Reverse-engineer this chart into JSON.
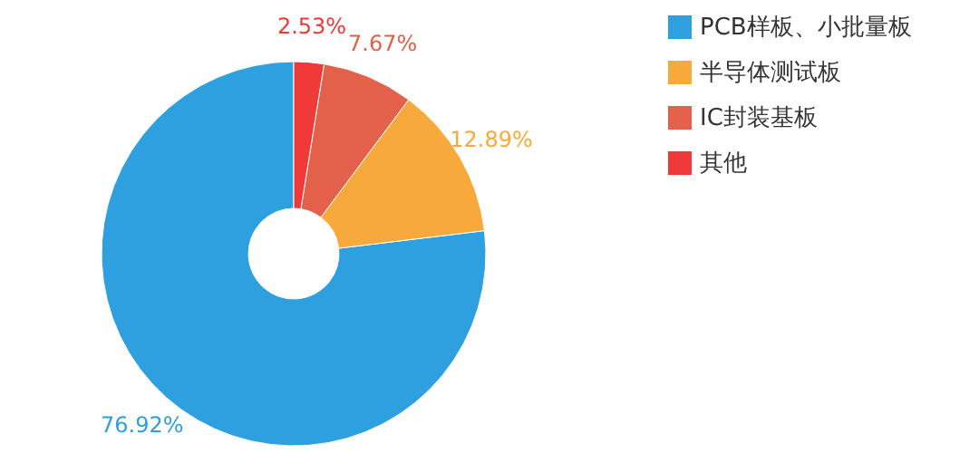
{
  "chart_data": {
    "type": "donut",
    "categories": [
      "PCB样板、小批量板",
      "半导体测试板",
      "IC封装基板",
      "其他"
    ],
    "values": [
      76.92,
      12.89,
      7.67,
      2.53
    ],
    "colors": [
      "#2ea0e0",
      "#f8a93c",
      "#e3604a",
      "#f03a3a"
    ],
    "value_labels": [
      "76.92%",
      "12.89%",
      "7.67%",
      "2.53%"
    ],
    "legend": "top right"
  }
}
